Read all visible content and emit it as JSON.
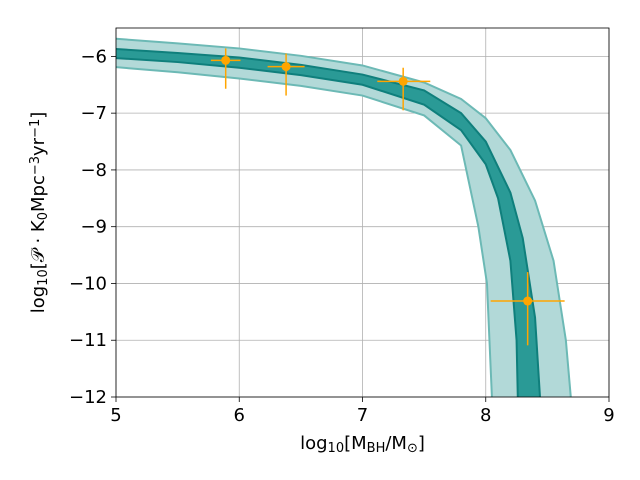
{
  "chart_data": {
    "type": "band",
    "xlabel": [
      {
        "text": "log"
      },
      {
        "text": "10",
        "shift": "sub"
      },
      {
        "text": "[M"
      },
      {
        "text": "BH",
        "shift": "sub"
      },
      {
        "text": "/M"
      },
      {
        "text": "⊙",
        "shift": "sub"
      },
      {
        "text": "]"
      }
    ],
    "ylabel": [
      {
        "text": "log"
      },
      {
        "text": "10",
        "shift": "sub"
      },
      {
        "text": "[𝒫 · K"
      },
      {
        "text": "0",
        "shift": "sub"
      },
      {
        "text": "Mpc"
      },
      {
        "text": "−3",
        "shift": "sup"
      },
      {
        "text": "yr"
      },
      {
        "text": "−1",
        "shift": "sup"
      },
      {
        "text": "]"
      }
    ],
    "xlim": [
      5,
      9
    ],
    "xticks": [
      5,
      6,
      7,
      8,
      9
    ],
    "ylim": [
      -12,
      -5.5
    ],
    "yticks": [
      {
        "value": -6,
        "label": "−6"
      },
      {
        "value": -7,
        "label": "−7"
      },
      {
        "value": -8,
        "label": "−8"
      },
      {
        "value": -9,
        "label": "−9"
      },
      {
        "value": -10,
        "label": "−10"
      },
      {
        "value": -11,
        "label": "−11"
      },
      {
        "value": -12,
        "label": "−12"
      }
    ],
    "grid": true,
    "bands": [
      {
        "color": "#b2d9d8",
        "edge_color": "#6cb9b5",
        "upper": {
          "x": [
            5,
            5.5,
            6,
            6.5,
            7,
            7.5,
            7.8,
            8,
            8.2,
            8.4,
            8.55,
            8.65,
            8.69
          ],
          "values": [
            -5.69,
            -5.77,
            -5.86,
            -5.99,
            -6.16,
            -6.46,
            -6.75,
            -7.09,
            -7.65,
            -8.54,
            -9.6,
            -11.0,
            -12
          ]
        },
        "lower": {
          "x": [
            5,
            5.5,
            6,
            6.5,
            7,
            7.5,
            7.8,
            7.94,
            8.01,
            8.03,
            8.05
          ],
          "values": [
            -6.19,
            -6.28,
            -6.39,
            -6.52,
            -6.69,
            -7.04,
            -7.57,
            -9.0,
            -10.0,
            -11.0,
            -12
          ]
        }
      },
      {
        "color": "#2a9a96",
        "edge_color": "#0f7f7c",
        "upper": {
          "x": [
            5,
            5.5,
            6,
            6.5,
            7,
            7.5,
            7.8,
            8,
            8.2,
            8.3,
            8.4,
            8.44
          ],
          "values": [
            -5.87,
            -5.94,
            -6.02,
            -6.15,
            -6.32,
            -6.6,
            -7.0,
            -7.5,
            -8.4,
            -9.2,
            -10.6,
            -12
          ]
        },
        "lower": {
          "x": [
            5,
            5.5,
            6,
            6.5,
            7,
            7.5,
            7.8,
            8,
            8.1,
            8.2,
            8.25,
            8.26
          ],
          "values": [
            -6.03,
            -6.1,
            -6.2,
            -6.33,
            -6.5,
            -6.85,
            -7.3,
            -7.9,
            -8.5,
            -9.6,
            -11.0,
            -12
          ]
        }
      }
    ],
    "points": {
      "color": "#ffa500",
      "x": [
        5.89,
        6.38,
        7.33,
        8.34
      ],
      "values": [
        -6.07,
        -6.18,
        -6.44,
        -10.31
      ],
      "xerr": [
        [
          0.12,
          0.12
        ],
        [
          0.15,
          0.15
        ],
        [
          0.21,
          0.22
        ],
        [
          0.3,
          0.3
        ]
      ],
      "yerr": [
        [
          0.21,
          0.5
        ],
        [
          0.23,
          0.51
        ],
        [
          0.24,
          0.51
        ],
        [
          0.51,
          0.78
        ]
      ]
    }
  }
}
